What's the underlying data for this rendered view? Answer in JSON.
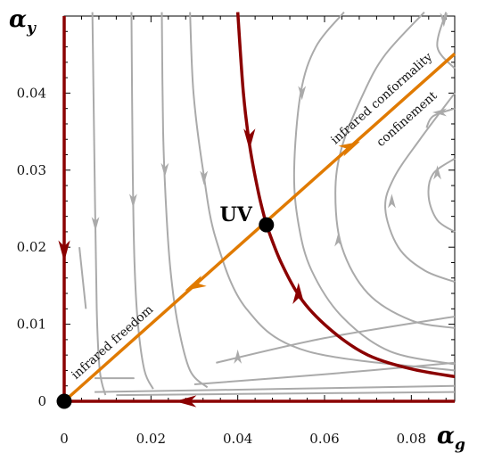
{
  "chart_data": {
    "type": "line",
    "title": "",
    "xlabel": {
      "base": "α",
      "sub": "g"
    },
    "ylabel": {
      "base": "α",
      "sub": "y"
    },
    "xlim": [
      0,
      0.09
    ],
    "ylim": [
      0,
      0.05
    ],
    "x_ticks": [
      {
        "value": 0,
        "label": "0"
      },
      {
        "value": 0.02,
        "label": "0.02"
      },
      {
        "value": 0.04,
        "label": "0.04"
      },
      {
        "value": 0.06,
        "label": "0.06"
      },
      {
        "value": 0.08,
        "label": "0.08"
      }
    ],
    "y_ticks": [
      {
        "value": 0,
        "label": "0"
      },
      {
        "value": 0.01,
        "label": "0.01"
      },
      {
        "value": 0.02,
        "label": "0.02"
      },
      {
        "value": 0.03,
        "label": "0.03"
      },
      {
        "value": 0.04,
        "label": "0.04"
      }
    ],
    "grid": false,
    "fixed_points": [
      {
        "label": "",
        "x": 0,
        "y": 0
      },
      {
        "label": "UV",
        "x": 0.0466,
        "y": 0.0229
      }
    ],
    "separatrices": [
      {
        "color": "#8b0000",
        "points": [
          [
            0,
            0.05
          ],
          [
            0,
            0
          ]
        ],
        "arrows": [
          [
            0,
            0.0195,
            "down"
          ]
        ]
      },
      {
        "color": "#8b0000",
        "points": [
          [
            0.09,
            0
          ],
          [
            0,
            0
          ]
        ],
        "arrows": [
          [
            0.028,
            0,
            "left"
          ]
        ]
      },
      {
        "color": "#8b0000",
        "points": [
          [
            0.04,
            0.0505
          ],
          [
            0.0413,
            0.04
          ],
          [
            0.0428,
            0.033
          ],
          [
            0.0448,
            0.027
          ],
          [
            0.0466,
            0.0229
          ]
        ],
        "arrows": [
          [
            0.0427,
            0.034,
            "down"
          ]
        ]
      },
      {
        "color": "#8b0000",
        "points": [
          [
            0.09,
            0.0032
          ],
          [
            0.08,
            0.0042
          ],
          [
            0.07,
            0.006
          ],
          [
            0.062,
            0.009
          ],
          [
            0.055,
            0.013
          ],
          [
            0.05,
            0.018
          ],
          [
            0.0466,
            0.0229
          ]
        ],
        "arrows": [
          [
            0.054,
            0.014,
            "up"
          ]
        ]
      },
      {
        "color": "#e07a00",
        "points": [
          [
            0,
            0
          ],
          [
            0.09,
            0.0451
          ]
        ],
        "arrows": [
          [
            0.03,
            0.015,
            "down-left"
          ],
          [
            0.066,
            0.0331,
            "up-right"
          ]
        ]
      }
    ],
    "flow_lines": [
      {
        "points": [
          [
            0.0065,
            0.0505
          ],
          [
            0.007,
            0.03
          ],
          [
            0.0075,
            0.012
          ],
          [
            0.0082,
            0.004
          ],
          [
            0.0095,
            0.0008
          ]
        ],
        "arrow": [
          0.0072,
          0.023,
          "down"
        ]
      },
      {
        "points": [
          [
            0.0155,
            0.0505
          ],
          [
            0.0158,
            0.03
          ],
          [
            0.0162,
            0.018
          ],
          [
            0.017,
            0.01
          ],
          [
            0.0185,
            0.004
          ],
          [
            0.0205,
            0.0016
          ]
        ],
        "arrow": [
          0.0159,
          0.026,
          "down"
        ]
      },
      {
        "points": [
          [
            0.0225,
            0.0505
          ],
          [
            0.0228,
            0.035
          ],
          [
            0.0235,
            0.025
          ],
          [
            0.0245,
            0.017
          ],
          [
            0.0262,
            0.01
          ],
          [
            0.029,
            0.004
          ],
          [
            0.033,
            0.0018
          ]
        ],
        "arrow": [
          0.0232,
          0.03,
          "down"
        ]
      },
      {
        "points": [
          [
            0.029,
            0.0505
          ],
          [
            0.0298,
            0.04
          ],
          [
            0.032,
            0.03
          ],
          [
            0.035,
            0.021
          ],
          [
            0.042,
            0.012
          ],
          [
            0.056,
            0.0065
          ],
          [
            0.09,
            0.004
          ]
        ],
        "arrow": [
          0.0322,
          0.029,
          "down"
        ]
      },
      {
        "points": [
          [
            0.0645,
            0.0505
          ],
          [
            0.058,
            0.046
          ],
          [
            0.0545,
            0.04
          ],
          [
            0.053,
            0.03
          ],
          [
            0.054,
            0.023
          ],
          [
            0.057,
            0.017
          ],
          [
            0.064,
            0.011
          ],
          [
            0.075,
            0.0065
          ],
          [
            0.09,
            0.0048
          ]
        ],
        "arrow": [
          0.0548,
          0.04,
          "down"
        ]
      },
      {
        "points": [
          [
            0.083,
            0.0505
          ],
          [
            0.074,
            0.045
          ],
          [
            0.069,
            0.04
          ],
          [
            0.064,
            0.033
          ],
          [
            0.0625,
            0.027
          ],
          [
            0.064,
            0.02
          ],
          [
            0.07,
            0.014
          ],
          [
            0.08,
            0.0105
          ],
          [
            0.09,
            0.0095
          ]
        ],
        "arrow": [
          0.0632,
          0.021,
          "up"
        ]
      },
      {
        "points": [
          [
            0.09,
            0.04
          ],
          [
            0.082,
            0.034
          ],
          [
            0.076,
            0.029
          ],
          [
            0.074,
            0.025
          ],
          [
            0.077,
            0.02
          ],
          [
            0.083,
            0.017
          ],
          [
            0.09,
            0.0155
          ]
        ],
        "arrow": [
          0.0755,
          0.026,
          "up"
        ]
      },
      {
        "points": [
          [
            0.09,
            0.0315
          ],
          [
            0.085,
            0.0295
          ],
          [
            0.084,
            0.0265
          ],
          [
            0.086,
            0.0235
          ],
          [
            0.09,
            0.022
          ]
        ],
        "arrow": [
          0.086,
          0.0297,
          "up"
        ]
      },
      {
        "points": [
          [
            0.088,
            0.0505
          ],
          [
            0.086,
            0.046
          ],
          [
            0.09,
            0.0432
          ]
        ],
        "arrow": [
          0.0875,
          0.0495,
          "down"
        ]
      },
      {
        "points": [
          [
            0.09,
            0.038
          ],
          [
            0.085,
            0.037
          ],
          [
            0.0835,
            0.0355
          ]
        ],
        "arrow": [
          0.0865,
          0.0375,
          "left"
        ]
      },
      {
        "points": [
          [
            0.005,
            0.012
          ],
          [
            0.0035,
            0.02
          ]
        ],
        "arrow": null
      },
      {
        "points": [
          [
            0.007,
            0.003
          ],
          [
            0.015,
            0.003
          ],
          [
            0.016,
            0.003
          ]
        ],
        "arrow": null
      },
      {
        "points": [
          [
            0.007,
            0.0012
          ],
          [
            0.05,
            0.0016
          ],
          [
            0.09,
            0.002
          ]
        ],
        "arrow": null
      },
      {
        "points": [
          [
            0.012,
            0.0008
          ],
          [
            0.05,
            0.001
          ],
          [
            0.09,
            0.0012
          ]
        ],
        "arrow": null
      },
      {
        "points": [
          [
            0.03,
            0.0022
          ],
          [
            0.06,
            0.0035
          ],
          [
            0.09,
            0.005
          ]
        ],
        "arrow": null
      },
      {
        "points": [
          [
            0.035,
            0.005
          ],
          [
            0.06,
            0.0082
          ],
          [
            0.09,
            0.011
          ]
        ],
        "arrow": [
          0.04,
          0.0058,
          "up"
        ]
      }
    ],
    "annotations": [
      {
        "text": "infrared freedom",
        "x": 0.0027,
        "y": 0.0028,
        "angle_along": "diagonal"
      },
      {
        "text": "infrared conformality",
        "x": 0.0625,
        "y": 0.0333,
        "angle_along": "diagonal"
      },
      {
        "text": "confinement",
        "x": 0.073,
        "y": 0.033,
        "angle_along": "diagonal"
      }
    ]
  }
}
